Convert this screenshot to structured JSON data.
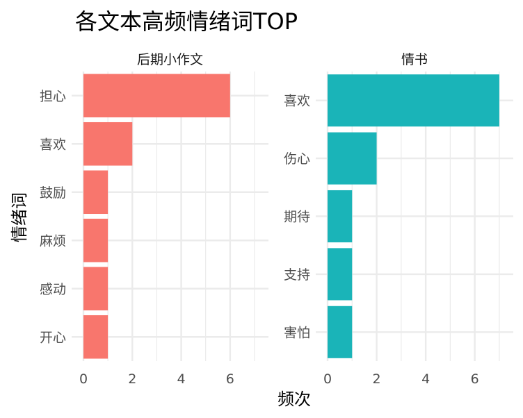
{
  "title": "各文本高频情绪词TOP",
  "xlabel": "频次",
  "ylabel": "情绪词",
  "chart_data": [
    {
      "type": "bar",
      "orientation": "horizontal",
      "panel": "后期小作文",
      "categories": [
        "担心",
        "喜欢",
        "鼓励",
        "麻烦",
        "感动",
        "开心"
      ],
      "values": [
        6,
        2,
        1,
        1,
        1,
        1
      ],
      "color": "#F8766D",
      "xlim": [
        0,
        7.2
      ],
      "xticks": [
        0,
        2,
        4,
        6
      ],
      "grid": true
    },
    {
      "type": "bar",
      "orientation": "horizontal",
      "panel": "情书",
      "categories": [
        "喜欢",
        "伤心",
        "期待",
        "支持",
        "害怕"
      ],
      "values": [
        7,
        2,
        1,
        1,
        1
      ],
      "color": "#1AB4B8",
      "xlim": [
        0,
        7.2
      ],
      "xticks": [
        0,
        2,
        4,
        6
      ],
      "grid": true
    }
  ]
}
